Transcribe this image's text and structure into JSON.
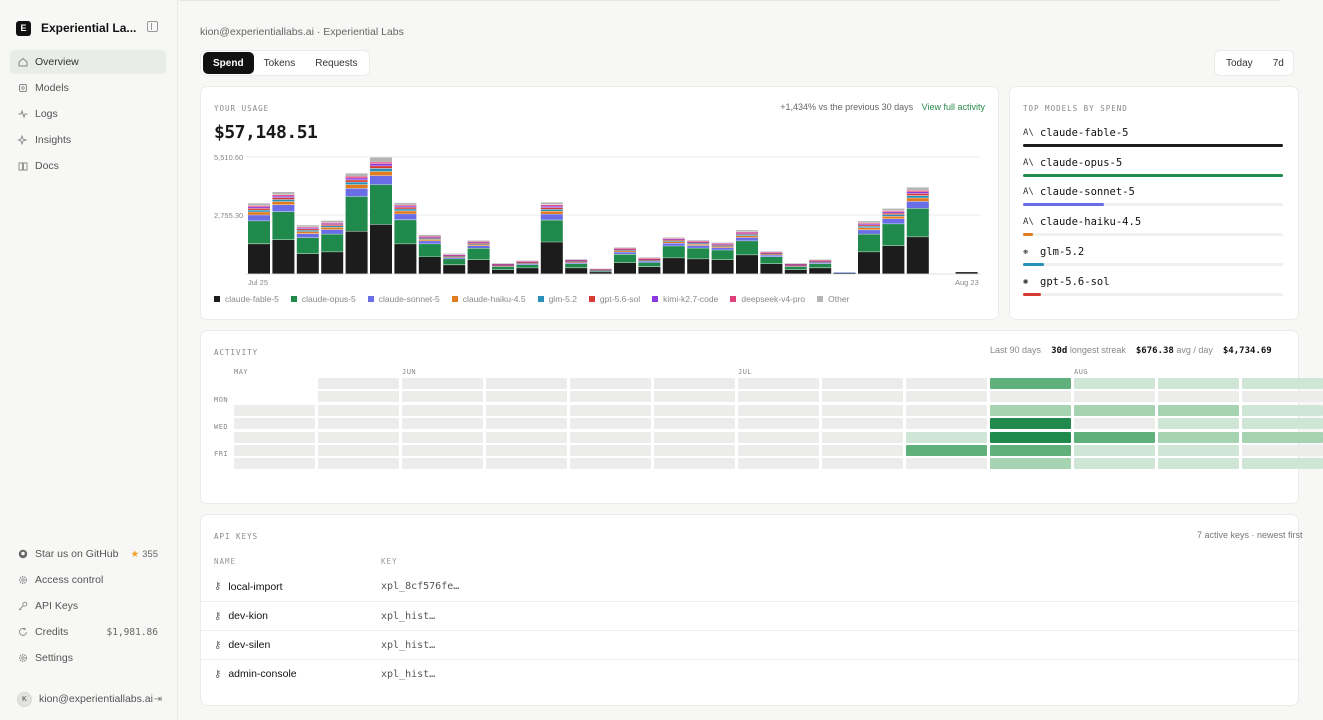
{
  "brand": {
    "logo_letter": "E",
    "name": "Experiential La..."
  },
  "nav": [
    {
      "label": "Overview",
      "icon": "home-icon",
      "active": true
    },
    {
      "label": "Models",
      "icon": "cube-icon"
    },
    {
      "label": "Logs",
      "icon": "activity-icon"
    },
    {
      "label": "Insights",
      "icon": "sparkle-icon"
    },
    {
      "label": "Docs",
      "icon": "book-icon"
    }
  ],
  "bottom_nav": {
    "github": {
      "label": "Star us on GitHub",
      "stars": "355"
    },
    "access": "Access control",
    "api_keys": "API Keys",
    "credits": {
      "label": "Credits",
      "value": "$1,981.86"
    },
    "settings": "Settings"
  },
  "user": {
    "initial": "K",
    "email": "kion@experientiallabs.ai"
  },
  "breadcrumb": "kion@experientiallabs.ai · Experiential Labs",
  "tabs": [
    "Spend",
    "Tokens",
    "Requests"
  ],
  "range": [
    "Today",
    "7d"
  ],
  "usage": {
    "label": "YOUR USAGE",
    "total": "$57,148.51",
    "delta": "+1,434% vs the previous 30 days",
    "link": "View full activity"
  },
  "colors": {
    "fable": "#1c1c1c",
    "opus": "#1f8a4c",
    "sonnet": "#6a6ee6",
    "haiku": "#e07b1e",
    "glm": "#2690b8",
    "gpt": "#d63a30",
    "kimi": "#8a3ae0",
    "deepseek": "#e0407a",
    "other": "#b5b5b5"
  },
  "chart_data": {
    "type": "bar",
    "stacked": true,
    "x_labels": {
      "start": "Jul 25",
      "end": "Aug 23"
    },
    "y_ticks": [
      "5,510.60",
      "2,755.30"
    ],
    "ylim": [
      0,
      5510.6
    ],
    "series_keys": [
      "fable",
      "opus",
      "sonnet",
      "haiku",
      "glm",
      "gpt",
      "kimi",
      "deepseek",
      "other"
    ],
    "series_names": [
      "claude-fable-5",
      "claude-opus-5",
      "claude-sonnet-5",
      "claude-haiku-4.5",
      "glm-5.2",
      "gpt-5.6-sol",
      "kimi-k2.7-code",
      "deepseek-v4-pro",
      "Other"
    ],
    "bars": [
      [
        1410,
        1080,
        280,
        140,
        90,
        80,
        70,
        60,
        120
      ],
      [
        1600,
        1320,
        330,
        150,
        100,
        90,
        70,
        60,
        140
      ],
      [
        940,
        760,
        190,
        100,
        70,
        60,
        50,
        40,
        90
      ],
      [
        1030,
        840,
        210,
        110,
        70,
        60,
        50,
        40,
        100
      ],
      [
        2000,
        1640,
        380,
        180,
        120,
        100,
        90,
        80,
        150
      ],
      [
        2320,
        1880,
        420,
        200,
        140,
        120,
        100,
        80,
        230
      ],
      [
        1410,
        1130,
        280,
        140,
        90,
        80,
        60,
        50,
        110
      ],
      [
        800,
        610,
        140,
        70,
        50,
        40,
        30,
        30,
        70
      ],
      [
        420,
        280,
        70,
        40,
        30,
        20,
        20,
        20,
        60
      ],
      [
        660,
        540,
        120,
        60,
        40,
        40,
        30,
        30,
        60
      ],
      [
        190,
        140,
        40,
        20,
        20,
        20,
        20,
        20,
        30
      ],
      [
        280,
        150,
        50,
        30,
        20,
        20,
        20,
        20,
        40
      ],
      [
        1500,
        1030,
        280,
        140,
        90,
        80,
        70,
        60,
        120
      ],
      [
        280,
        190,
        60,
        40,
        30,
        20,
        20,
        20,
        40
      ],
      [
        90,
        50,
        20,
        20,
        20,
        10,
        10,
        10,
        20
      ],
      [
        520,
        400,
        100,
        60,
        40,
        30,
        30,
        20,
        50
      ],
      [
        330,
        200,
        70,
        40,
        30,
        20,
        20,
        20,
        50
      ],
      [
        750,
        560,
        130,
        70,
        50,
        40,
        30,
        30,
        60
      ],
      [
        700,
        510,
        120,
        60,
        50,
        40,
        30,
        30,
        50
      ],
      [
        660,
        460,
        110,
        60,
        40,
        40,
        30,
        30,
        50
      ],
      [
        890,
        660,
        160,
        80,
        60,
        50,
        40,
        40,
        90
      ],
      [
        470,
        330,
        80,
        50,
        30,
        20,
        20,
        20,
        40
      ],
      [
        190,
        140,
        40,
        20,
        20,
        20,
        20,
        20,
        30
      ],
      [
        280,
        190,
        60,
        30,
        20,
        20,
        20,
        20,
        40
      ],
      [
        40,
        20,
        10,
        0,
        0,
        0,
        0,
        0,
        0
      ],
      [
        1030,
        840,
        200,
        100,
        70,
        60,
        50,
        40,
        100
      ],
      [
        1320,
        1030,
        240,
        120,
        80,
        70,
        60,
        50,
        110
      ],
      [
        1740,
        1340,
        330,
        160,
        110,
        100,
        80,
        70,
        150
      ],
      [
        0,
        0,
        0,
        0,
        0,
        0,
        0,
        0,
        0
      ],
      [
        90,
        0,
        0,
        0,
        0,
        0,
        0,
        0,
        0
      ]
    ]
  },
  "top_models": {
    "label": "TOP MODELS BY SPEND",
    "items": [
      {
        "name": "claude-fable-5",
        "icon": "anthropic-icon",
        "glyph": "A\\",
        "share": 1.0,
        "color": "#1c1c1c"
      },
      {
        "name": "claude-opus-5",
        "icon": "anthropic-icon",
        "glyph": "A\\",
        "share": 1.0,
        "color": "#1f8a4c"
      },
      {
        "name": "claude-sonnet-5",
        "icon": "anthropic-icon",
        "glyph": "A\\",
        "share": 0.31,
        "color": "#6a6ee6"
      },
      {
        "name": "claude-haiku-4.5",
        "icon": "anthropic-icon",
        "glyph": "A\\",
        "share": 0.04,
        "color": "#e07b1e"
      },
      {
        "name": "glm-5.2",
        "icon": "glm-icon",
        "glyph": "❋",
        "share": 0.08,
        "color": "#2690b8"
      },
      {
        "name": "gpt-5.6-sol",
        "icon": "openai-icon",
        "glyph": "✺",
        "share": 0.07,
        "color": "#d63a30"
      }
    ]
  },
  "activity": {
    "label": "ACTIVITY",
    "period": "Last 90 days",
    "streak_value": "30d",
    "streak_label": "longest streak",
    "avg_value": "$676.38",
    "avg_label": "avg / day",
    "total_value": "$4,734.69",
    "months": [
      "MAY",
      "JUN",
      "JUL",
      "AUG"
    ],
    "day_labels": [
      "MON",
      "WED",
      "FRI"
    ],
    "weeks": [
      [
        null,
        null,
        0,
        0,
        0,
        0,
        0
      ],
      [
        0,
        0,
        0,
        0,
        0,
        0,
        0
      ],
      [
        0,
        0,
        0,
        0,
        0,
        0,
        0
      ],
      [
        0,
        0,
        0,
        0,
        0,
        0,
        0
      ],
      [
        0,
        0,
        0,
        0,
        0,
        0,
        0
      ],
      [
        0,
        0,
        0,
        0,
        0,
        0,
        0
      ],
      [
        0,
        0,
        0,
        0,
        0,
        0,
        0
      ],
      [
        0,
        0,
        0,
        0,
        0,
        0,
        0
      ],
      [
        0,
        0,
        0,
        0,
        1,
        3,
        0
      ],
      [
        3,
        0,
        2,
        4,
        4,
        3,
        2
      ],
      [
        1,
        0,
        2,
        0,
        3,
        1,
        1
      ],
      [
        1,
        0,
        2,
        1,
        2,
        1,
        1
      ],
      [
        1,
        0,
        1,
        1,
        2,
        0,
        1
      ]
    ]
  },
  "keys": {
    "label": "API KEYS",
    "meta": "7 active keys · newest first",
    "col_name": "NAME",
    "col_key": "KEY",
    "rows": [
      {
        "name": "local-import",
        "key": "xpl_8cf576fe…"
      },
      {
        "name": "dev-kion",
        "key": "xpl_hist…"
      },
      {
        "name": "dev-silen",
        "key": "xpl_hist…"
      },
      {
        "name": "admin-console",
        "key": "xpl_hist…"
      }
    ]
  }
}
